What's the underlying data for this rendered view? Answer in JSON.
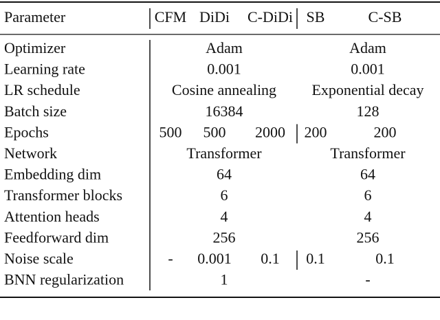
{
  "table": {
    "header": {
      "parameter": "Parameter",
      "group1": [
        "CFM",
        "DiDi",
        "C-DiDi"
      ],
      "group2": [
        "SB",
        "C-SB"
      ]
    },
    "rows": [
      {
        "label": "Optimizer",
        "group1": "Adam",
        "group2": "Adam"
      },
      {
        "label": "Learning rate",
        "group1": "0.001",
        "group2": "0.001"
      },
      {
        "label": "LR schedule",
        "group1": "Cosine annealing",
        "group2": "Exponential decay"
      },
      {
        "label": "Batch size",
        "group1": "16384",
        "group2": "128"
      },
      {
        "label": "Epochs",
        "group1": [
          "500",
          "500",
          "2000"
        ],
        "group2": [
          "200",
          "200"
        ]
      },
      {
        "label": "Network",
        "group1": "Transformer",
        "group2": "Transformer"
      },
      {
        "label": "Embedding dim",
        "group1": "64",
        "group2": "64"
      },
      {
        "label": "Transformer blocks",
        "group1": "6",
        "group2": "6"
      },
      {
        "label": "Attention heads",
        "group1": "4",
        "group2": "4"
      },
      {
        "label": "Feedforward dim",
        "group1": "256",
        "group2": "256"
      },
      {
        "label": "Noise scale",
        "group1": [
          "-",
          "0.001",
          "0.1"
        ],
        "group2": [
          "0.1",
          "0.1"
        ]
      },
      {
        "label": "BNN regularization",
        "group1": "1",
        "group2": "-"
      }
    ]
  }
}
